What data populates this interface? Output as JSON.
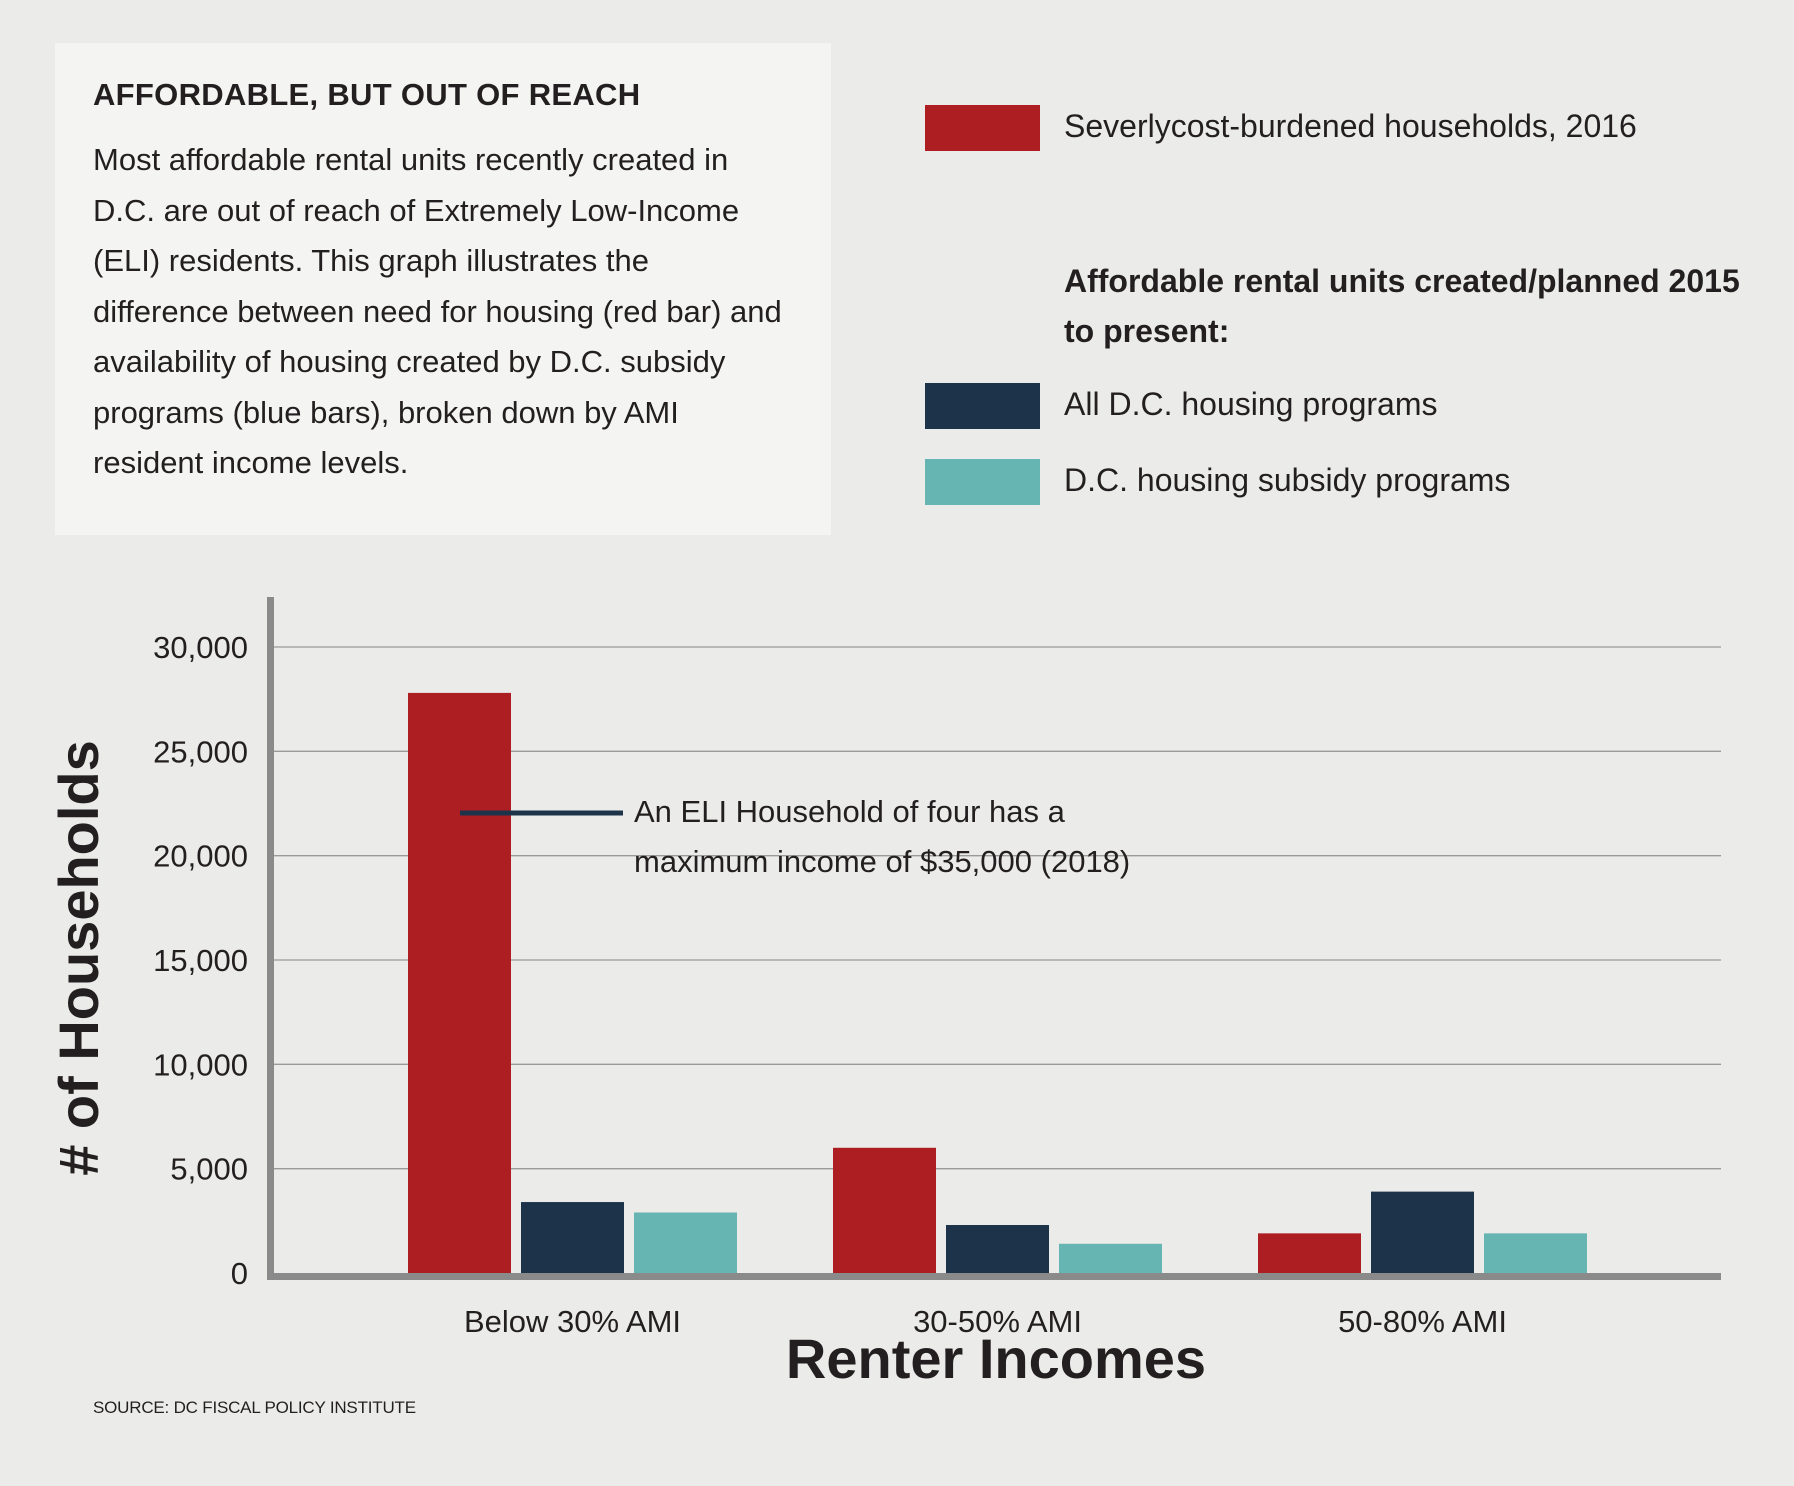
{
  "intro": {
    "title": "AFFORDABLE, BUT OUT OF REACH",
    "body": "Most affordable rental units recently created in D.C. are out of reach of Extremely Low-Income (ELI) residents. This graph illustrates the difference between need for housing (red bar) and availability of housing created by D.C. subsidy programs (blue bars), broken down by AMI resident income levels."
  },
  "legend": {
    "severe_label": "Severlycost-burdened households, 2016",
    "heading": "Affordable rental units created/planned 2015 to present:",
    "all_label": "All D.C. housing programs",
    "subsidy_label": "D.C. housing subsidy programs"
  },
  "colors": {
    "severe": "#ad1e23",
    "all": "#1d3349",
    "subsidy": "#67b5b2"
  },
  "chart_data": {
    "type": "bar",
    "categories": [
      "Below 30% AMI",
      "30-50% AMI",
      "50-80% AMI"
    ],
    "series": [
      {
        "name": "Severlycost-burdened households, 2016",
        "values": [
          27800,
          6000,
          1900
        ]
      },
      {
        "name": "All D.C. housing programs",
        "values": [
          3400,
          2300,
          3900
        ]
      },
      {
        "name": "D.C. housing subsidy programs",
        "values": [
          2900,
          1400,
          1900
        ]
      }
    ],
    "xlabel": "Renter Incomes",
    "ylabel": "# of Households",
    "ylim": [
      0,
      30000
    ],
    "yticks": [
      0,
      5000,
      10000,
      15000,
      20000,
      25000,
      30000
    ],
    "ytick_labels": [
      "0",
      "5,000",
      "10,000",
      "15,000",
      "20,000",
      "25,000",
      "30,000"
    ],
    "grid": true,
    "annotation": {
      "lines": [
        "An ELI Household of four has a",
        "maximum income of $35,000 (2018)"
      ]
    }
  },
  "source": "SOURCE: DC FISCAL POLICY INSTITUTE"
}
